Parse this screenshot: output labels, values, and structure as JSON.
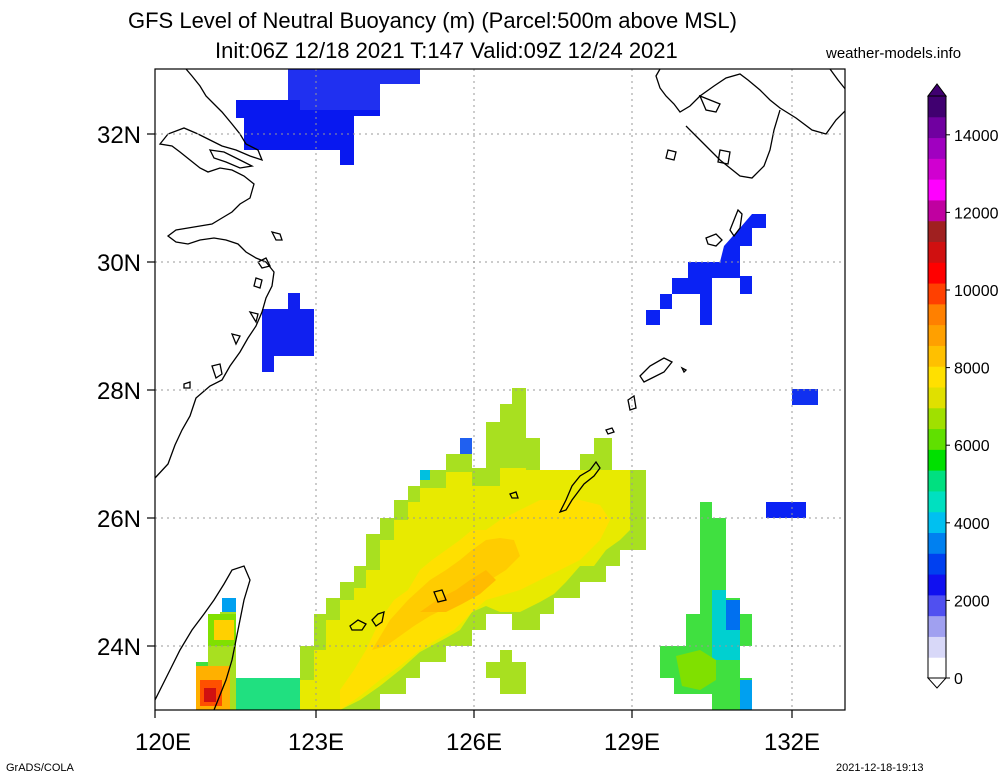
{
  "title_line1": "GFS Level of Neutral Buoyancy (m) (Parcel:500m above MSL)",
  "title_line2": "Init:06Z 12/18 2021 T:147 Valid:09Z 12/24 2021",
  "site": "weather-models.info",
  "footer_left": "GrADS/COLA",
  "footer_right": "2021-12-18-19:13",
  "map": {
    "lon_range": [
      120,
      133
    ],
    "lat_range": [
      23,
      33
    ],
    "lon_ticks": [
      {
        "value": 120,
        "label": "120E"
      },
      {
        "value": 123,
        "label": "123E"
      },
      {
        "value": 126,
        "label": "126E"
      },
      {
        "value": 129,
        "label": "129E"
      },
      {
        "value": 132,
        "label": "132E"
      }
    ],
    "lat_ticks": [
      {
        "value": 24,
        "label": "24N"
      },
      {
        "value": 26,
        "label": "26N"
      },
      {
        "value": 28,
        "label": "28N"
      },
      {
        "value": 30,
        "label": "30N"
      },
      {
        "value": 32,
        "label": "32N"
      }
    ],
    "grid": true
  },
  "colorbar": {
    "min": 0,
    "max": 15000,
    "labels": [
      "0",
      "2000",
      "4000",
      "6000",
      "8000",
      "10000",
      "12000",
      "14000"
    ],
    "colors": [
      "#ffffff",
      "#d8d8f8",
      "#a0a0f0",
      "#5050f0",
      "#1010f0",
      "#0040f0",
      "#0080f0",
      "#00c0f0",
      "#00e0c0",
      "#00e080",
      "#00e000",
      "#60e000",
      "#a0e000",
      "#e0e000",
      "#ffe000",
      "#ffc000",
      "#ffa000",
      "#ff8000",
      "#ff4000",
      "#ff0000",
      "#d01010",
      "#a02020",
      "#c000a0",
      "#ff00ff",
      "#d000d0",
      "#a000c0",
      "#7000a0",
      "#400070"
    ]
  }
}
